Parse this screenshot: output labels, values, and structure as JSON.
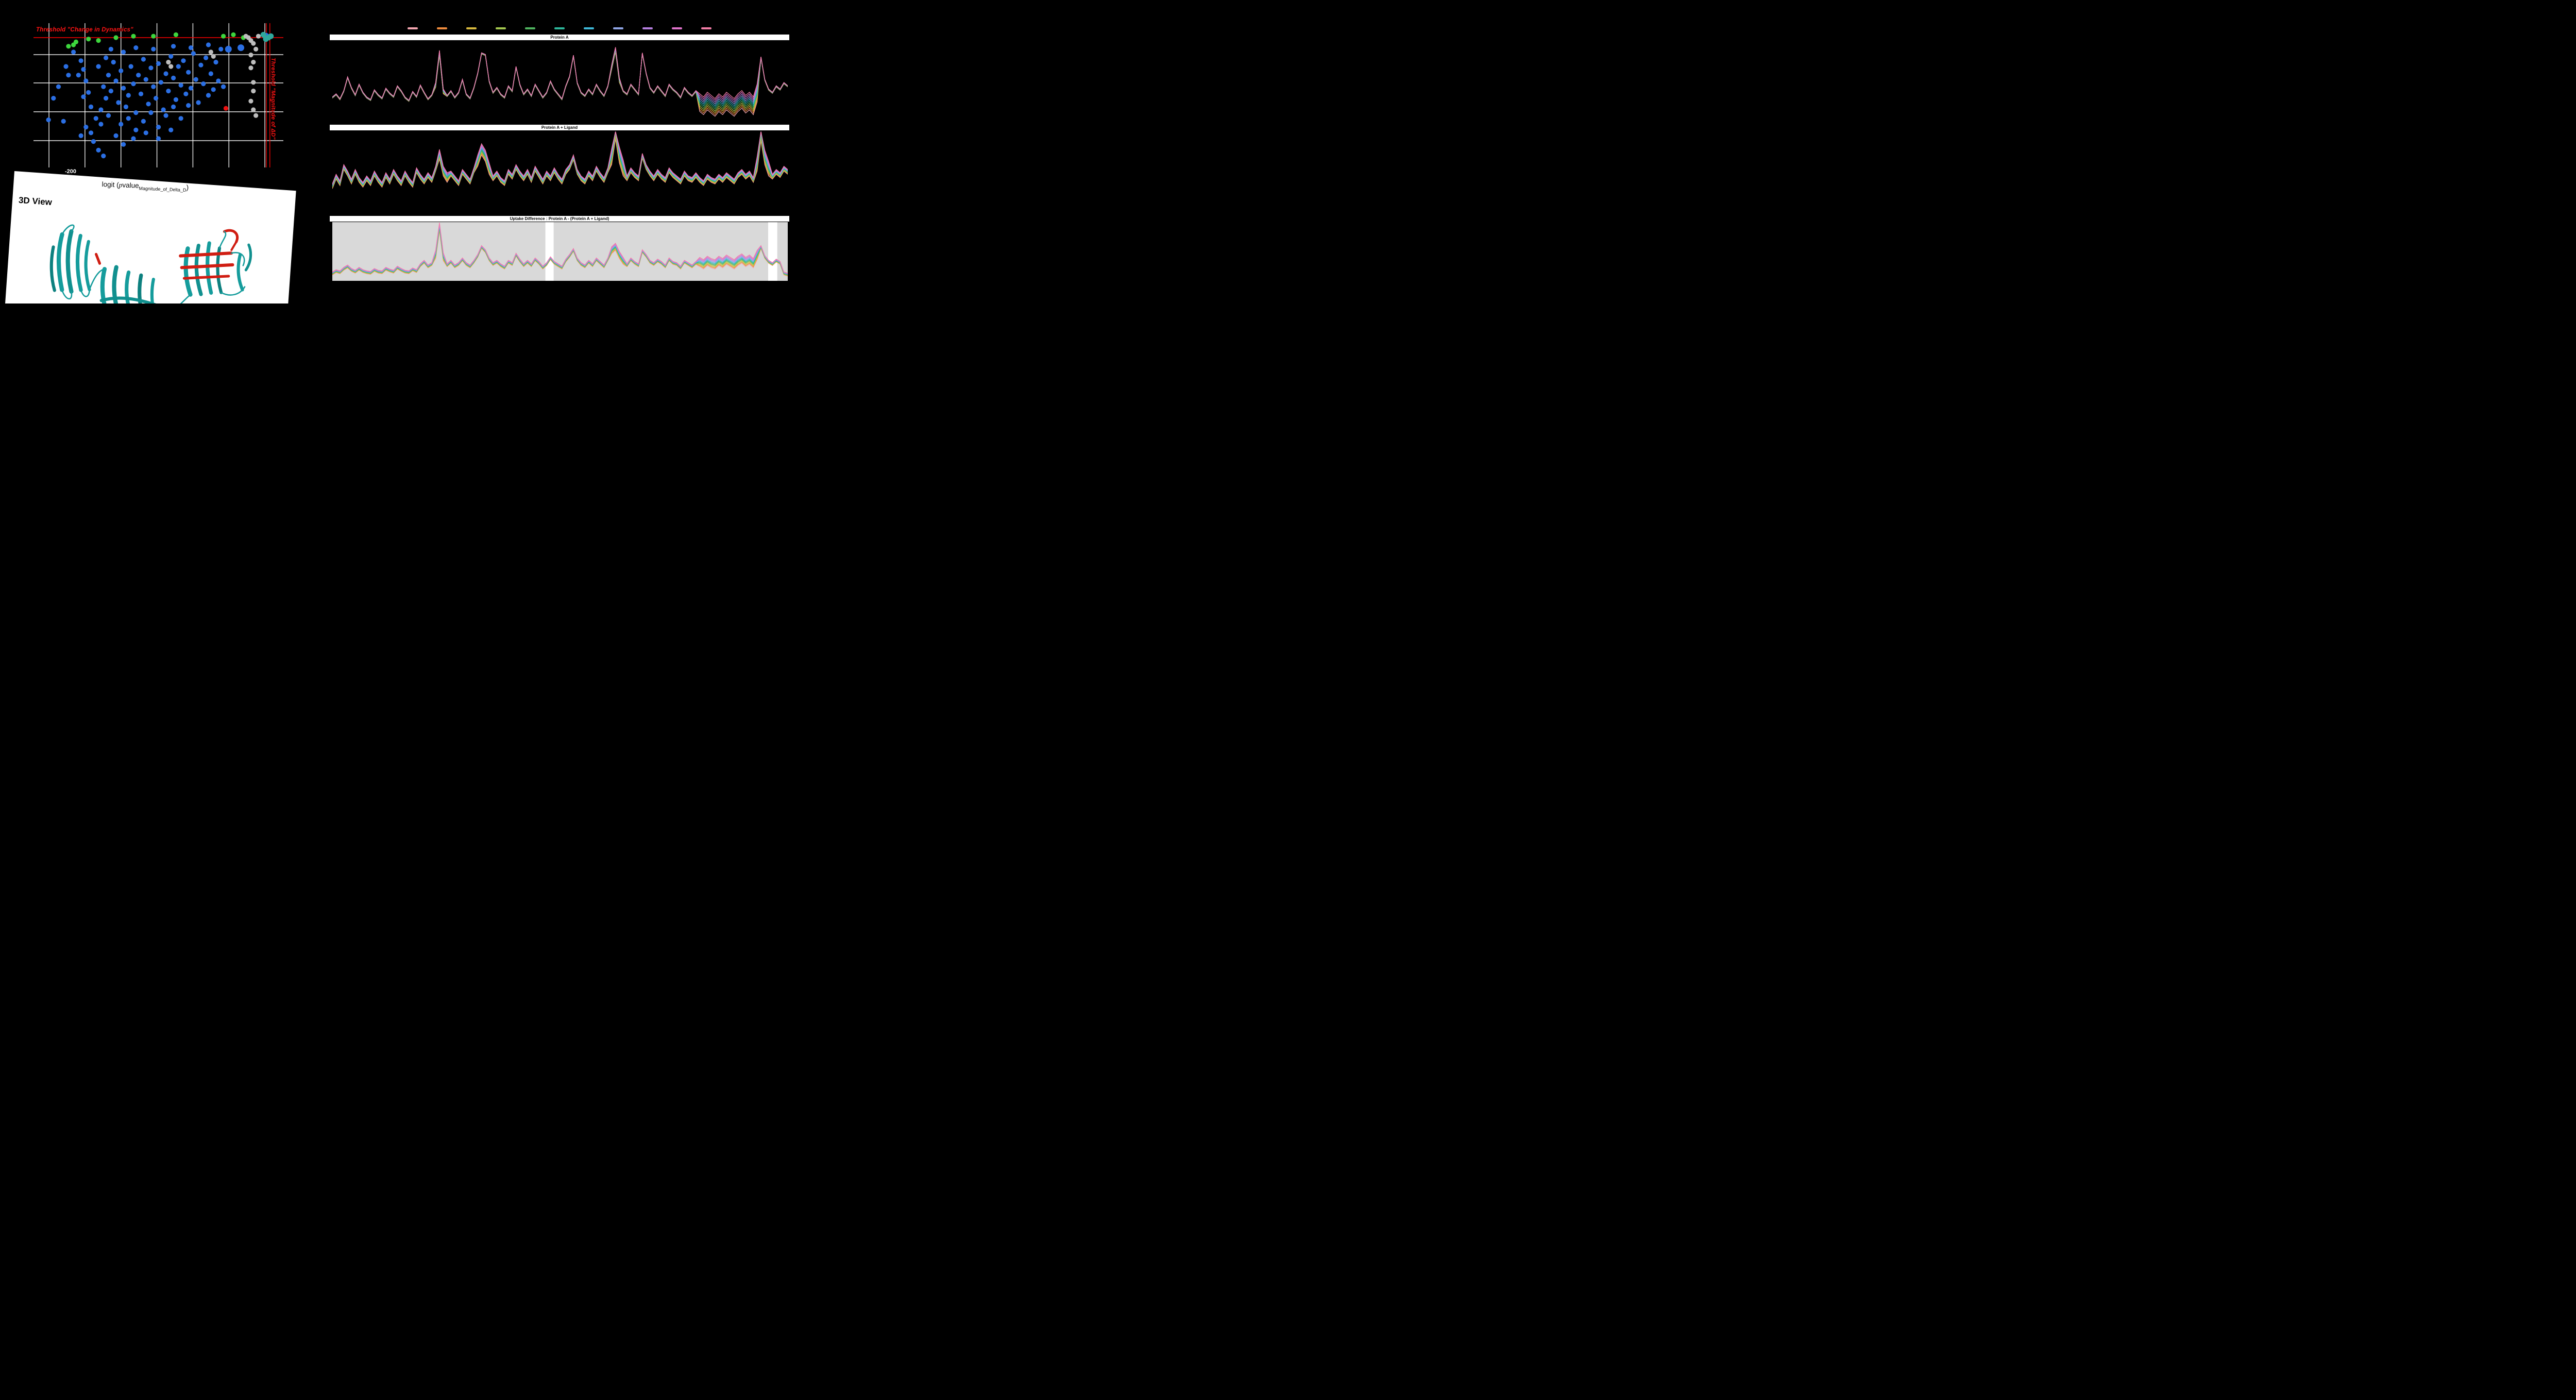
{
  "page": {
    "background": "#000000"
  },
  "volcano": {
    "threshold_top_label": "Threshold \"Change in Dynamics\"",
    "threshold_right_label": "Threshold \"Magnitude of ΔD\"",
    "x_tick_label": "-200",
    "xlabel_pre": "logit (",
    "xlabel_p": "p",
    "xlabel_value": "value",
    "xlabel_sub": "Magnitude_of_Delta_D",
    "xlabel_post": ")"
  },
  "viewer3d": {
    "title": "3D View"
  },
  "chart_data": [
    {
      "type": "scatter",
      "title": "",
      "xlabel": "logit (pvalue_Magnitude_of_Delta_D)",
      "x_ticks": [
        {
          "label": "-200",
          "x_pct": 15.5
        }
      ],
      "grid_x_pct": [
        6.2,
        20.6,
        35.0,
        49.4,
        63.8,
        78.2,
        92.6
      ],
      "grid_y_pct": [
        21.8,
        41.4,
        61.4,
        81.4
      ],
      "threshold_h_y_pct": 10,
      "threshold_v_x_pct": [
        93.2,
        94.6
      ],
      "point_groups": [
        {
          "name": "blue",
          "color": "#2b6fe4",
          "points": [
            [
              6,
              67
            ],
            [
              12,
              68
            ],
            [
              8,
              52
            ],
            [
              14,
              36
            ],
            [
              20,
              51
            ],
            [
              19,
              78
            ],
            [
              21,
              72
            ],
            [
              23,
              76
            ],
            [
              25,
              66
            ],
            [
              27,
              60
            ],
            [
              28,
              44
            ],
            [
              29,
              52
            ],
            [
              30,
              36
            ],
            [
              31,
              47
            ],
            [
              32,
              27
            ],
            [
              33,
              40
            ],
            [
              34,
              55
            ],
            [
              35,
              33
            ],
            [
              36,
              45
            ],
            [
              37,
              58
            ],
            [
              38,
              50
            ],
            [
              39,
              30
            ],
            [
              40,
              42
            ],
            [
              41,
              62
            ],
            [
              42,
              36
            ],
            [
              43,
              49
            ],
            [
              44,
              25
            ],
            [
              45,
              39
            ],
            [
              46,
              56
            ],
            [
              47,
              31
            ],
            [
              48,
              44
            ],
            [
              49,
              52
            ],
            [
              50,
              28
            ],
            [
              51,
              41
            ],
            [
              52,
              60
            ],
            [
              53,
              35
            ],
            [
              54,
              47
            ],
            [
              55,
              23
            ],
            [
              56,
              38
            ],
            [
              57,
              53
            ],
            [
              58,
              30
            ],
            [
              59,
              43
            ],
            [
              60,
              26
            ],
            [
              61,
              49
            ],
            [
              62,
              34
            ],
            [
              63,
              45
            ],
            [
              64,
              21
            ],
            [
              65,
              39
            ],
            [
              66,
              55
            ],
            [
              67,
              29
            ],
            [
              68,
              42
            ],
            [
              69,
              24
            ],
            [
              70,
              50
            ],
            [
              71,
              35
            ],
            [
              72,
              46
            ],
            [
              73,
              27
            ],
            [
              74,
              40
            ],
            [
              76,
              44
            ],
            [
              35,
              70
            ],
            [
              38,
              66
            ],
            [
              41,
              74
            ],
            [
              44,
              68
            ],
            [
              47,
              62
            ],
            [
              50,
              72
            ],
            [
              53,
              64
            ],
            [
              56,
              58
            ],
            [
              59,
              66
            ],
            [
              62,
              57
            ],
            [
              30,
              64
            ],
            [
              27,
              70
            ],
            [
              24,
              82
            ],
            [
              26,
              88
            ],
            [
              28,
              92
            ],
            [
              33,
              78
            ],
            [
              36,
              84
            ],
            [
              40,
              80
            ],
            [
              45,
              76
            ],
            [
              50,
              80
            ],
            [
              55,
              74
            ],
            [
              23,
              58
            ],
            [
              22,
              48
            ],
            [
              21,
              40
            ],
            [
              20,
              32
            ],
            [
              19,
              26
            ],
            [
              18,
              36
            ],
            [
              26,
              30
            ],
            [
              29,
              24
            ],
            [
              31,
              18
            ],
            [
              36,
              20
            ],
            [
              41,
              17
            ],
            [
              48,
              18
            ],
            [
              56,
              16
            ],
            [
              63,
              17
            ],
            [
              70,
              15
            ],
            [
              75,
              18
            ],
            [
              16,
              20
            ],
            [
              13,
              30
            ],
            [
              10,
              44
            ]
          ]
        },
        {
          "name": "blue-large",
          "color": "#2b6fe4",
          "size": 6.5,
          "points": [
            [
              78,
              18
            ],
            [
              83,
              17
            ],
            [
              93,
              9
            ]
          ]
        },
        {
          "name": "green",
          "color": "#3dd63d",
          "points": [
            [
              14,
              16
            ],
            [
              16,
              15
            ],
            [
              17,
              13
            ],
            [
              22,
              11
            ],
            [
              26,
              12
            ],
            [
              33,
              10
            ],
            [
              40,
              9
            ],
            [
              48,
              9
            ],
            [
              57,
              8
            ],
            [
              76,
              9
            ],
            [
              80,
              8
            ],
            [
              84,
              10
            ]
          ]
        },
        {
          "name": "teal",
          "color": "#2fa89b",
          "size": 5.5,
          "points": [
            [
              92,
              8
            ],
            [
              94,
              10
            ],
            [
              95,
              9
            ],
            [
              93,
              11
            ]
          ]
        },
        {
          "name": "gray",
          "color": "#bdbdbd",
          "points": [
            [
              85,
              9
            ],
            [
              90,
              9
            ],
            [
              86,
              10
            ],
            [
              87,
              12
            ],
            [
              88,
              14
            ],
            [
              89,
              18
            ],
            [
              87,
              22
            ],
            [
              88,
              27
            ],
            [
              87,
              31
            ],
            [
              88,
              41
            ],
            [
              88,
              47
            ],
            [
              87,
              54
            ],
            [
              88,
              60
            ],
            [
              89,
              64
            ],
            [
              71,
              20
            ],
            [
              72,
              23
            ],
            [
              54,
              27
            ],
            [
              55,
              30
            ]
          ]
        },
        {
          "name": "red",
          "color": "#ee1111",
          "points": [
            [
              77,
              59
            ]
          ]
        }
      ]
    },
    {
      "type": "line",
      "title": "Protein A",
      "xlabel": "",
      "ylabel": "",
      "ylim": [
        0,
        100
      ],
      "colors": [
        "#f4a6b0",
        "#ef8b3d",
        "#d8b93e",
        "#a5c94f",
        "#4fb45f",
        "#2db79b",
        "#3eb8d8",
        "#8fa5e6",
        "#b57fe0",
        "#df72cb",
        "#f27da6"
      ],
      "n_series": 11,
      "fan_dir": -1,
      "spread_default": 1.5,
      "spread_regions": [
        {
          "from": 96,
          "to": 111,
          "amount": 22
        },
        {
          "from": 27,
          "to": 29,
          "amount": 6
        },
        {
          "from": 73,
          "to": 75,
          "amount": 6
        }
      ],
      "base": [
        30,
        34,
        28,
        38,
        55,
        42,
        33,
        46,
        36,
        30,
        27,
        39,
        33,
        29,
        41,
        35,
        31,
        44,
        38,
        30,
        26,
        37,
        31,
        45,
        36,
        28,
        33,
        48,
        88,
        40,
        32,
        38,
        30,
        36,
        52,
        34,
        29,
        42,
        60,
        85,
        83,
        50,
        36,
        42,
        34,
        30,
        44,
        38,
        68,
        46,
        34,
        40,
        32,
        46,
        38,
        30,
        36,
        50,
        40,
        34,
        28,
        44,
        56,
        82,
        48,
        36,
        32,
        40,
        34,
        46,
        38,
        32,
        44,
        70,
        92,
        54,
        38,
        34,
        46,
        40,
        34,
        85,
        60,
        42,
        36,
        44,
        38,
        32,
        46,
        40,
        36,
        30,
        42,
        36,
        32,
        38,
        34,
        30,
        36,
        32,
        28,
        34,
        30,
        36,
        32,
        28,
        34,
        38,
        32,
        36,
        30,
        46,
        80,
        52,
        40,
        36,
        44,
        40,
        48,
        44
      ]
    },
    {
      "type": "line",
      "title": "Protein A + Ligand",
      "xlabel": "",
      "ylabel": "",
      "ylim": [
        0,
        100
      ],
      "colors": [
        "#f4a6b0",
        "#ef8b3d",
        "#d8b93e",
        "#a5c94f",
        "#4fb45f",
        "#2db79b",
        "#3eb8d8",
        "#8fa5e6",
        "#b57fe0",
        "#df72cb",
        "#f27da6"
      ],
      "n_series": 11,
      "fan_dir": 1,
      "spread_default": 6,
      "spread_regions": [
        {
          "from": 73,
          "to": 76,
          "amount": 20
        },
        {
          "from": 111,
          "to": 114,
          "amount": 18
        },
        {
          "from": 38,
          "to": 41,
          "amount": 14
        },
        {
          "from": 28,
          "to": 30,
          "amount": 12
        }
      ],
      "base": [
        28,
        40,
        32,
        52,
        44,
        34,
        46,
        36,
        30,
        38,
        32,
        44,
        36,
        30,
        42,
        34,
        46,
        38,
        32,
        44,
        36,
        30,
        48,
        40,
        34,
        42,
        36,
        50,
        65,
        44,
        36,
        44,
        38,
        32,
        46,
        40,
        34,
        48,
        56,
        70,
        62,
        46,
        38,
        44,
        36,
        32,
        46,
        40,
        52,
        44,
        38,
        46,
        36,
        50,
        42,
        34,
        44,
        38,
        48,
        40,
        34,
        46,
        52,
        64,
        46,
        38,
        34,
        44,
        38,
        50,
        42,
        36,
        48,
        58,
        90,
        60,
        44,
        38,
        48,
        42,
        38,
        66,
        52,
        44,
        38,
        46,
        40,
        36,
        48,
        42,
        38,
        34,
        44,
        38,
        36,
        42,
        36,
        32,
        40,
        36,
        34,
        40,
        36,
        42,
        38,
        34,
        42,
        46,
        40,
        44,
        36,
        50,
        88,
        58,
        44,
        40,
        46,
        42,
        50,
        46
      ]
    },
    {
      "type": "line",
      "title": "Uptake Difference : Protein A - (Protein A + Ligand)",
      "xlabel": "",
      "ylabel": "",
      "ylim": [
        0,
        100
      ],
      "colors": [
        "#f4a6b0",
        "#ef8b3d",
        "#d8b93e",
        "#a5c94f",
        "#4fb45f",
        "#2db79b",
        "#3eb8d8",
        "#8fa5e6",
        "#b57fe0",
        "#df72cb",
        "#f27da6"
      ],
      "n_series": 11,
      "fan_dir": 1,
      "spread_default": 5,
      "spread_regions": [
        {
          "from": 27,
          "to": 29,
          "amount": 14
        },
        {
          "from": 96,
          "to": 111,
          "amount": 16
        },
        {
          "from": 73,
          "to": 76,
          "amount": 12
        }
      ],
      "bg_segments": [
        [
          0,
          46.8,
          "#d9d9d9"
        ],
        [
          46.8,
          48.6,
          "#ffffff"
        ],
        [
          48.6,
          95.7,
          "#d9d9d9"
        ],
        [
          95.7,
          97.7,
          "#ffffff"
        ],
        [
          97.7,
          100,
          "#d9d9d9"
        ]
      ],
      "base": [
        10,
        14,
        12,
        18,
        22,
        16,
        13,
        18,
        14,
        12,
        11,
        16,
        13,
        12,
        18,
        15,
        13,
        20,
        16,
        13,
        12,
        17,
        14,
        24,
        30,
        22,
        26,
        38,
        85,
        34,
        24,
        30,
        22,
        26,
        34,
        26,
        22,
        30,
        40,
        55,
        48,
        34,
        26,
        30,
        24,
        20,
        30,
        26,
        42,
        32,
        24,
        30,
        24,
        34,
        28,
        20,
        26,
        36,
        28,
        24,
        20,
        32,
        40,
        50,
        34,
        26,
        22,
        30,
        24,
        34,
        28,
        22,
        34,
        46,
        52,
        38,
        28,
        24,
        34,
        28,
        24,
        48,
        40,
        30,
        26,
        32,
        28,
        22,
        34,
        28,
        26,
        20,
        30,
        26,
        22,
        28,
        24,
        20,
        26,
        22,
        20,
        26,
        22,
        28,
        24,
        20,
        26,
        30,
        24,
        28,
        22,
        36,
        55,
        38,
        30,
        26,
        32,
        28,
        10,
        8
      ]
    }
  ]
}
